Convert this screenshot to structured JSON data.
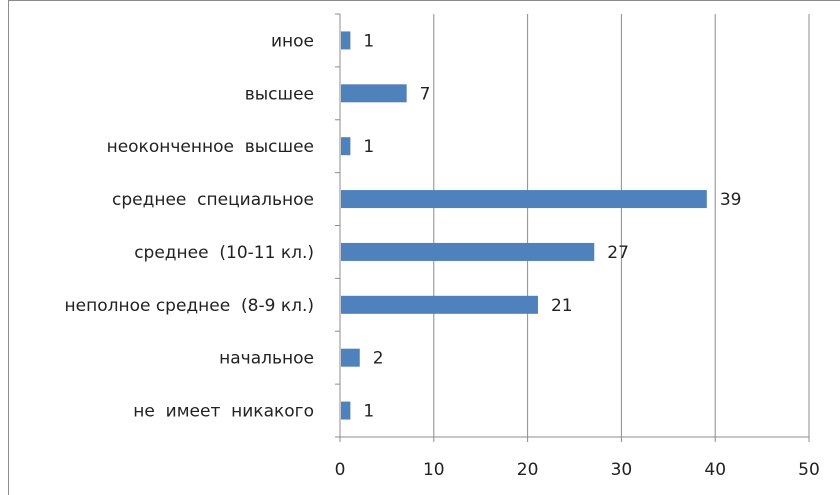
{
  "chart_data": {
    "type": "bar",
    "orientation": "horizontal",
    "categories": [
      "иное",
      "высшее",
      "неоконченное  высшее",
      "среднее  специальное",
      "среднее  (10-11 кл.)",
      "неполное среднее  (8-9 кл.)",
      "начальное",
      "не  имеет  никакого"
    ],
    "values": [
      1,
      7,
      1,
      39,
      27,
      21,
      2,
      1
    ],
    "value_labels": [
      "1",
      "7",
      "1",
      "39",
      "27",
      "21",
      "2",
      "1"
    ],
    "xlim": [
      0,
      50
    ],
    "xticks": [
      "0",
      "10",
      "20",
      "30",
      "40",
      "50"
    ],
    "grid": "vertical",
    "bar_color": "#4f81bd",
    "legend": "none"
  }
}
